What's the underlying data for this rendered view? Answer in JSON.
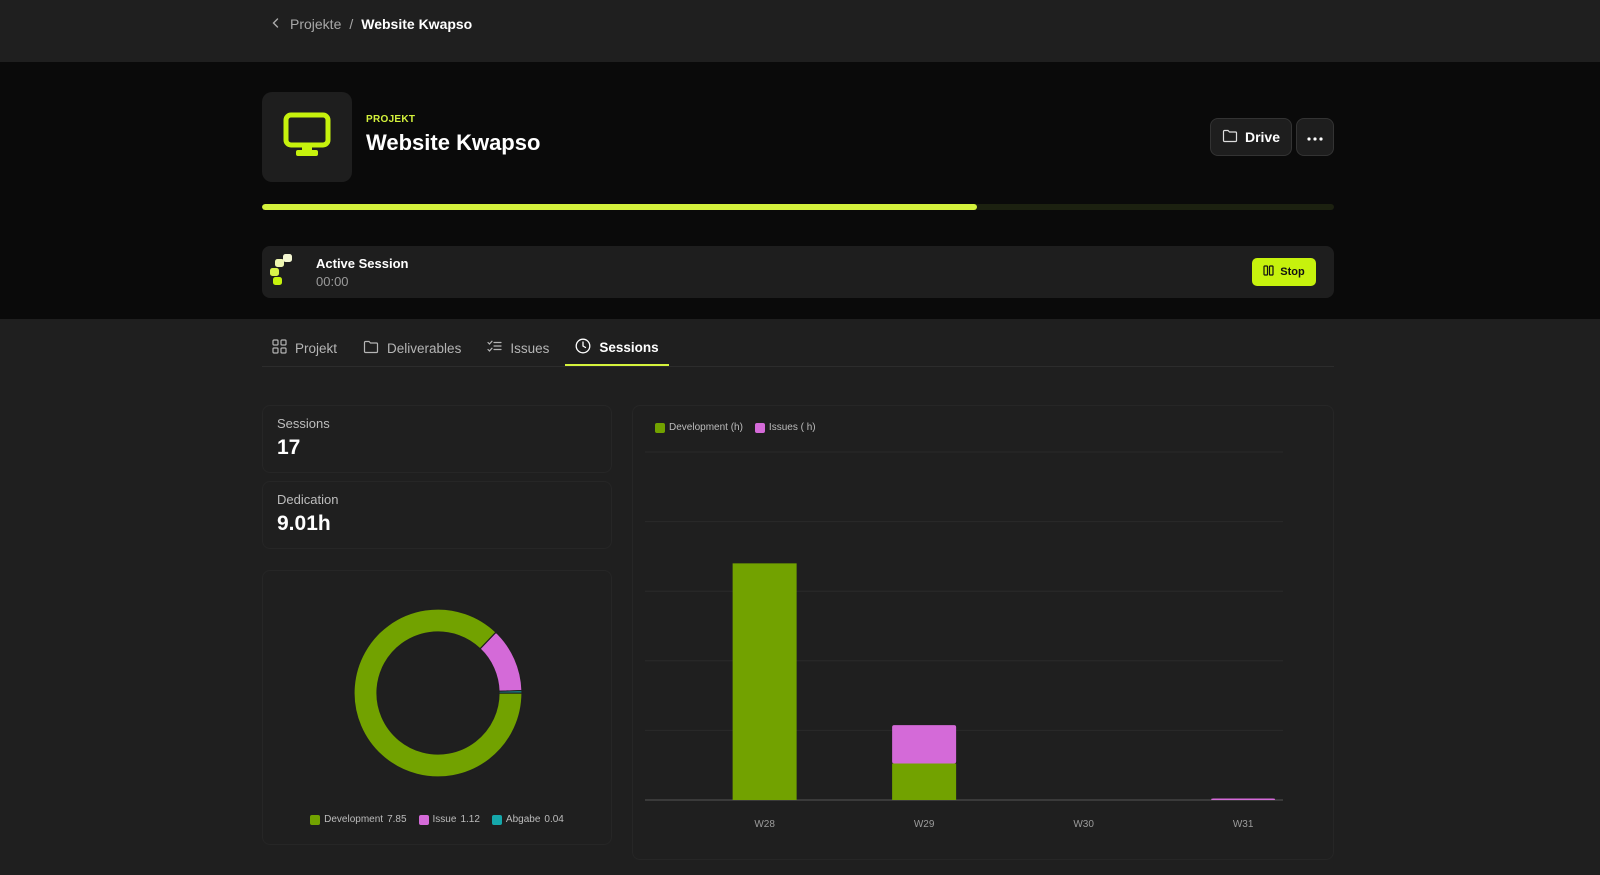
{
  "breadcrumb": {
    "parent": "Projekte",
    "separator": "/",
    "current": "Website Kwapso"
  },
  "project": {
    "label": "PROJEKT",
    "title": "Website Kwapso",
    "progress_fraction": 0.667
  },
  "actions": {
    "drive_label": "Drive"
  },
  "session": {
    "title": "Active Session",
    "time": "00:00",
    "stop_label": "Stop"
  },
  "tabs": [
    {
      "label": "Projekt",
      "icon": "grid-icon"
    },
    {
      "label": "Deliverables",
      "icon": "folder-icon"
    },
    {
      "label": "Issues",
      "icon": "checklist-icon"
    },
    {
      "label": "Sessions",
      "icon": "clock-icon",
      "active": true
    }
  ],
  "stats": {
    "sessions": {
      "label": "Sessions",
      "value": "17"
    },
    "dedication": {
      "label": "Dedication",
      "value": "9.01h"
    }
  },
  "colors": {
    "accent": "#d4f23c",
    "development": "#72a200",
    "issue": "#d46ad8",
    "abgabe": "#15a7aa"
  },
  "chart_data": [
    {
      "type": "pie",
      "series": [
        {
          "name": "Development",
          "value": 7.85,
          "label": "7.85"
        },
        {
          "name": "Issue",
          "value": 1.12,
          "label": "1.12"
        },
        {
          "name": "Abgabe",
          "value": 0.04,
          "label": "0.04"
        }
      ]
    },
    {
      "type": "bar",
      "stacked": true,
      "categories": [
        "W28",
        "W29",
        "W30",
        "W31"
      ],
      "series": [
        {
          "name": "Development (h)",
          "values": [
            6.8,
            1.05,
            0,
            0
          ]
        },
        {
          "name": "Issues ( h)",
          "values": [
            0,
            1.1,
            0,
            0.02
          ]
        }
      ],
      "ylim": [
        0,
        10
      ],
      "grid": true,
      "legend": "top-left"
    }
  ]
}
